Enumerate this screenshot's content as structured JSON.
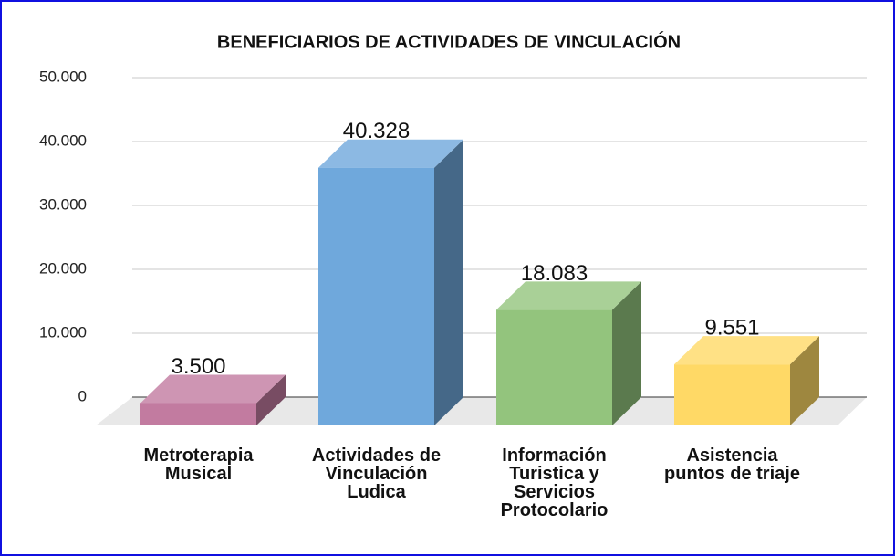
{
  "chart_data": {
    "type": "bar3d",
    "title": "BENEFICIARIOS DE ACTIVIDADES DE VINCULACIÓN",
    "categories": [
      "Metroterapia\nMusical",
      "Actividades de\nVinculación\nLudica",
      "Información\nTuristica y\nServicios\nProtocolario",
      "Asistencia\npuntos de triaje"
    ],
    "values": [
      3500,
      40328,
      18083,
      9551
    ],
    "value_labels": [
      "3.500",
      "40.328",
      "18.083",
      "9.551"
    ],
    "colors": [
      "#c27ba0",
      "#6fa8dc",
      "#93c47d",
      "#ffd966"
    ],
    "ylim": [
      0,
      50000
    ],
    "yticks": [
      0,
      {
        "value": 10000,
        "label": "10.000"
      },
      {
        "value": 20000,
        "label": "20.000"
      },
      {
        "value": 30000,
        "label": "30.000"
      },
      {
        "value": 40000,
        "label": "40.000"
      },
      {
        "value": 50000,
        "label": "50.000"
      }
    ],
    "grid": true
  }
}
